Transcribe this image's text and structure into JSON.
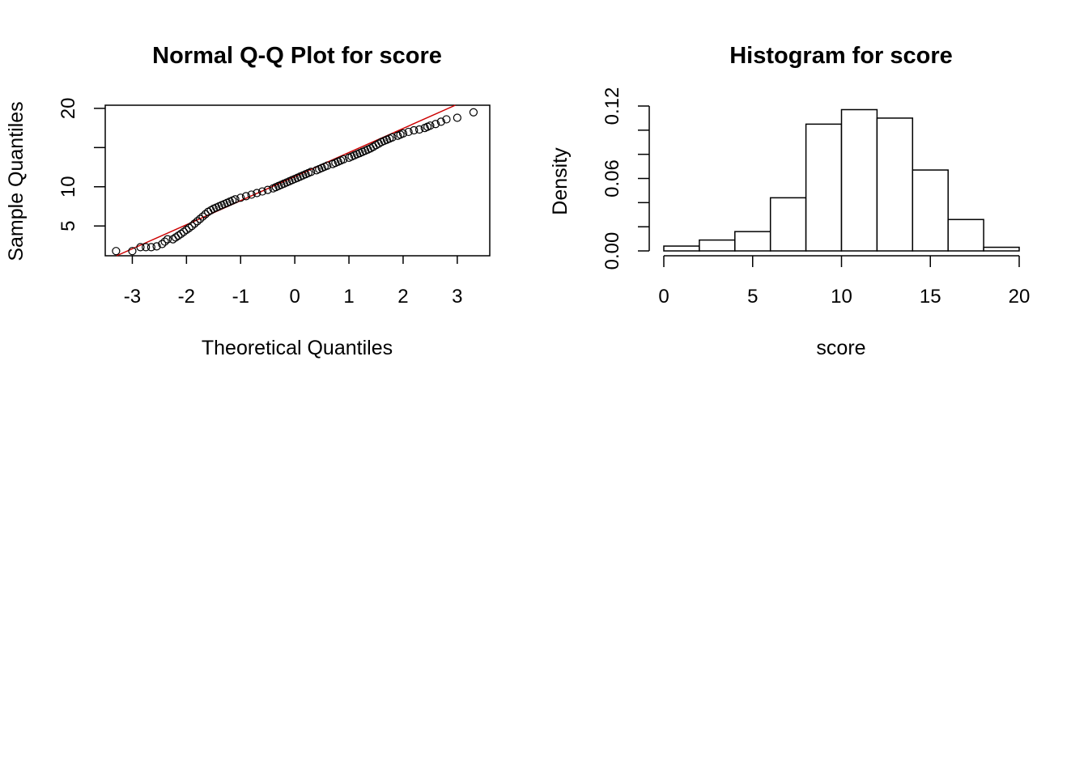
{
  "chart_data": [
    {
      "type": "scatter",
      "title": "Normal Q-Q Plot for  score",
      "xlabel": "Theoretical Quantiles",
      "ylabel": "Sample Quantiles",
      "xlim": [
        -3.5,
        3.6
      ],
      "ylim": [
        1.2,
        20.4
      ],
      "x_ticks": [
        -3,
        -2,
        -1,
        0,
        1,
        2,
        3
      ],
      "y_ticks": [
        5,
        10,
        15,
        20
      ],
      "y_tick_labels": [
        "5",
        "10",
        "",
        "20"
      ],
      "reference_line": {
        "intercept": 11.3,
        "slope": 3.07,
        "color": "#cc0000"
      },
      "points": [
        [
          -3.3,
          1.8
        ],
        [
          -3.0,
          1.8
        ],
        [
          -2.85,
          2.3
        ],
        [
          -2.75,
          2.3
        ],
        [
          -2.65,
          2.3
        ],
        [
          -2.55,
          2.4
        ],
        [
          -2.45,
          2.7
        ],
        [
          -2.35,
          3.3
        ],
        [
          -2.25,
          3.3
        ],
        [
          -2.1,
          4.0
        ],
        [
          -2.0,
          4.5
        ],
        [
          -1.9,
          5.0
        ],
        [
          -1.8,
          5.6
        ],
        [
          -1.7,
          6.2
        ],
        [
          -1.6,
          6.8
        ],
        [
          -1.5,
          7.2
        ],
        [
          -1.4,
          7.5
        ],
        [
          -1.3,
          7.8
        ],
        [
          -1.2,
          8.1
        ],
        [
          -1.1,
          8.4
        ],
        [
          -1.0,
          8.6
        ],
        [
          -0.9,
          8.8
        ],
        [
          -0.8,
          9.0
        ],
        [
          -0.7,
          9.2
        ],
        [
          -0.6,
          9.4
        ],
        [
          -0.5,
          9.6
        ],
        [
          -0.4,
          9.8
        ],
        [
          -0.3,
          10.1
        ],
        [
          -0.2,
          10.4
        ],
        [
          -0.1,
          10.7
        ],
        [
          0.0,
          11.0
        ],
        [
          0.1,
          11.3
        ],
        [
          0.2,
          11.6
        ],
        [
          0.3,
          11.9
        ],
        [
          0.4,
          12.1
        ],
        [
          0.5,
          12.4
        ],
        [
          0.6,
          12.7
        ],
        [
          0.7,
          12.9
        ],
        [
          0.8,
          13.2
        ],
        [
          0.9,
          13.5
        ],
        [
          1.0,
          13.7
        ],
        [
          1.1,
          14.0
        ],
        [
          1.2,
          14.3
        ],
        [
          1.3,
          14.6
        ],
        [
          1.4,
          14.9
        ],
        [
          1.5,
          15.3
        ],
        [
          1.6,
          15.7
        ],
        [
          1.7,
          16.0
        ],
        [
          1.8,
          16.3
        ],
        [
          1.9,
          16.5
        ],
        [
          2.0,
          16.8
        ],
        [
          2.1,
          17.0
        ],
        [
          2.2,
          17.2
        ],
        [
          2.3,
          17.3
        ],
        [
          2.4,
          17.5
        ],
        [
          2.5,
          17.8
        ],
        [
          2.6,
          18.0
        ],
        [
          2.7,
          18.3
        ],
        [
          2.8,
          18.6
        ],
        [
          3.0,
          18.8
        ],
        [
          3.3,
          19.5
        ]
      ]
    },
    {
      "type": "bar",
      "title": "Histogram for  score",
      "xlabel": "score",
      "ylabel": "Density",
      "xlim": [
        0,
        20
      ],
      "ylim": [
        0,
        0.12
      ],
      "x_ticks": [
        0,
        5,
        10,
        15,
        20
      ],
      "y_ticks": [
        0,
        0.02,
        0.04,
        0.06,
        0.08,
        0.1,
        0.12
      ],
      "y_tick_labels": [
        "0.00",
        "",
        "",
        "0.06",
        "",
        "",
        "0.12"
      ],
      "bins": [
        {
          "from": 0,
          "to": 2,
          "density": 0.004
        },
        {
          "from": 2,
          "to": 4,
          "density": 0.009
        },
        {
          "from": 4,
          "to": 6,
          "density": 0.016
        },
        {
          "from": 6,
          "to": 8,
          "density": 0.044
        },
        {
          "from": 8,
          "to": 10,
          "density": 0.105
        },
        {
          "from": 10,
          "to": 12,
          "density": 0.117
        },
        {
          "from": 12,
          "to": 14,
          "density": 0.11
        },
        {
          "from": 14,
          "to": 16,
          "density": 0.067
        },
        {
          "from": 16,
          "to": 18,
          "density": 0.026
        },
        {
          "from": 18,
          "to": 20,
          "density": 0.003
        }
      ]
    }
  ]
}
